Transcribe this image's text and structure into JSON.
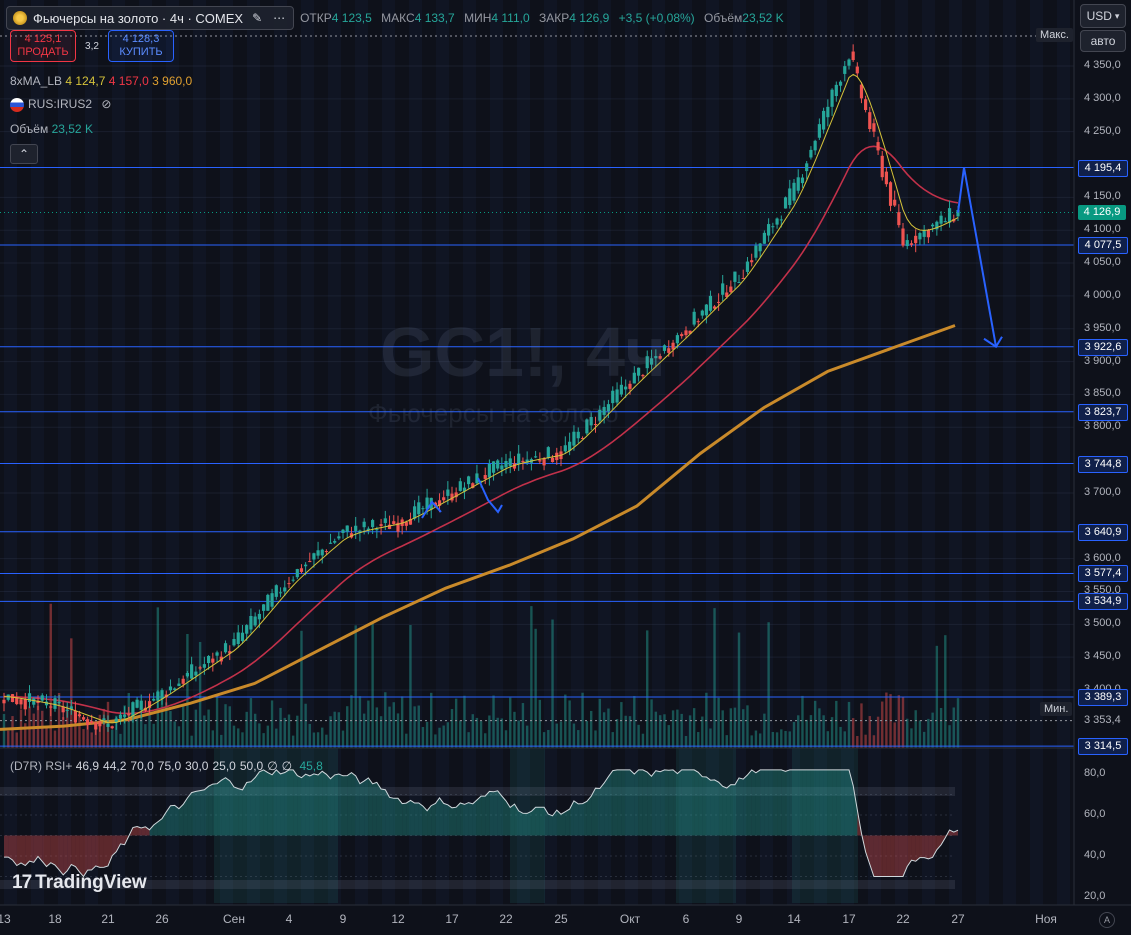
{
  "header": {
    "title": "Фьючерсы на золото · 4ч · COMEX",
    "ohlc": [
      {
        "label": "ОТКР",
        "value": "4 123,5"
      },
      {
        "label": "МАКС",
        "value": "4 133,7"
      },
      {
        "label": "МИН",
        "value": "4 111,0"
      },
      {
        "label": "ЗАКР",
        "value": "4 126,9"
      }
    ],
    "change": "+3,5 (+0,08%)",
    "volume_label": "Объём",
    "volume_value": "23,52 K"
  },
  "trade": {
    "sell_price": "4 125,1",
    "sell_label": "ПРОДАТЬ",
    "spread": "3,2",
    "buy_price": "4 128,3",
    "buy_label": "КУПИТЬ"
  },
  "indicators": {
    "ma_name": "8xMA_LB",
    "ma_values": [
      "4 124,7",
      "4 157,0",
      "3 960,0"
    ],
    "ma_colors": [
      "#d4c23a",
      "#f23645",
      "#e0a030"
    ],
    "compare_symbol": "RUS:IRUS2",
    "volume_label": "Объём",
    "volume_value": "23,52 K",
    "collapse_icon": "chevron-up-icon"
  },
  "watermark": {
    "symbol": "GC1!, 4ч",
    "name": "Фьючерсы на золото"
  },
  "price_axis": {
    "currency": "USD",
    "scale_mode": "авто",
    "max_label": "Макс.",
    "min_label": "Мин.",
    "min_value": "3 353,4",
    "ticks": [
      "4 350,0",
      "4 300,0",
      "4 250,0",
      "4 150,0",
      "4 100,0",
      "4 050,0",
      "4 000,0",
      "3 950,0",
      "3 900,0",
      "3 850,0",
      "3 800,0",
      "3 700,0",
      "3 600,0",
      "3 550,0",
      "3 500,0",
      "3 450,0",
      "3 400,0"
    ],
    "levels": [
      "4 195,4",
      "4 077,5",
      "3 922,6",
      "3 823,7",
      "3 744,8",
      "3 640,9",
      "3 577,4",
      "3 534,9",
      "3 389,3",
      "3 314,5"
    ],
    "current_price": "4 126,9"
  },
  "time_axis": {
    "labels": [
      "13",
      "18",
      "21",
      "26",
      "Сен",
      "4",
      "9",
      "12",
      "17",
      "22",
      "25",
      "Окт",
      "6",
      "9",
      "14",
      "17",
      "22",
      "27",
      "Ноя"
    ],
    "auto_label": "A"
  },
  "rsi": {
    "name": "(D7R) RSI+",
    "params": [
      "46,9",
      "44,2",
      "70,0",
      "75,0",
      "30,0",
      "25,0",
      "50,0",
      "∅",
      "∅"
    ],
    "value": "45,8",
    "ticks": [
      "80,0",
      "60,0",
      "40,0",
      "20,0"
    ]
  },
  "branding": {
    "logo_text": "TradingView",
    "logo_mark": "17"
  },
  "colors": {
    "background": "#0e111a",
    "up": "#26a69a",
    "down": "#ef5350",
    "level_line": "#2962ff",
    "ma_fast": "#d4c23a",
    "ma_mid": "#c2314a",
    "ma_slow": "#c98a2a",
    "forecast_arrow": "#2962ff"
  },
  "chart_data": {
    "type": "candlestick",
    "symbol": "GC1!",
    "timeframe": "4ч",
    "ylim": [
      3300,
      4390
    ],
    "horizontal_levels": [
      4195.4,
      4077.5,
      3922.6,
      3823.7,
      3744.8,
      3640.9,
      3577.4,
      3534.9,
      3389.3,
      3314.5
    ],
    "last_close": 4126.9,
    "session_high_marker": "Макс.",
    "session_low": 3353.4,
    "price_path": [
      {
        "t": "13",
        "p": 3390
      },
      {
        "t": "18",
        "p": 3375
      },
      {
        "t": "21",
        "p": 3345
      },
      {
        "t": "26",
        "p": 3395
      },
      {
        "t": "Сен",
        "p": 3470
      },
      {
        "t": "4",
        "p": 3570
      },
      {
        "t": "9",
        "p": 3640
      },
      {
        "t": "12",
        "p": 3655
      },
      {
        "t": "17",
        "p": 3700
      },
      {
        "t": "22",
        "p": 3745
      },
      {
        "t": "25",
        "p": 3760
      },
      {
        "t": "Окт",
        "p": 3870
      },
      {
        "t": "6",
        "p": 3950
      },
      {
        "t": "9",
        "p": 4030
      },
      {
        "t": "14",
        "p": 4160
      },
      {
        "t": "17",
        "p": 4370
      },
      {
        "t": "22",
        "p": 4080
      },
      {
        "t": "27",
        "p": 4127
      }
    ],
    "ma_slow": [
      3340,
      3345,
      3355,
      3380,
      3410,
      3460,
      3510,
      3555,
      3590,
      3630,
      3680,
      3760,
      3830,
      3885,
      3920,
      3955
    ],
    "forecast": [
      {
        "label": "up",
        "to": 4195.4
      },
      {
        "label": "down",
        "to": 3922.6
      }
    ],
    "rsi_ylim": [
      15,
      90
    ],
    "rsi_levels": [
      70,
      60,
      50,
      40,
      30
    ]
  }
}
